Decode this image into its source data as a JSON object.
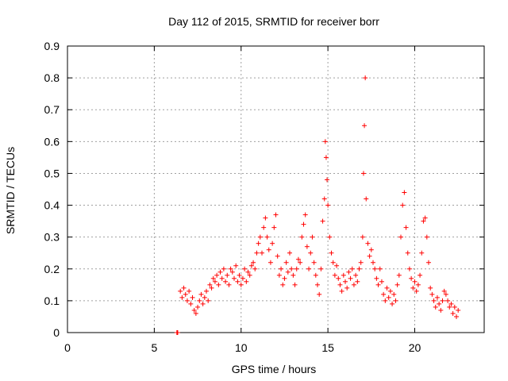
{
  "chart_data": {
    "type": "scatter",
    "title": "Day 112 of 2015, SRMTID for receiver borr",
    "xlabel": "GPS time / hours",
    "ylabel": "SRMTID / TECUs",
    "xlim": [
      0,
      24
    ],
    "ylim": [
      0,
      0.9
    ],
    "xticks": [
      0,
      5,
      10,
      15,
      20
    ],
    "xtick_labels": [
      "0",
      "5",
      "10",
      "15",
      "20"
    ],
    "yticks": [
      0,
      0.1,
      0.2,
      0.3,
      0.4,
      0.5,
      0.6,
      0.7,
      0.8,
      0.9
    ],
    "ytick_labels": [
      "0",
      "0.1",
      "0.2",
      "0.3",
      "0.4",
      "0.5",
      "0.6",
      "0.7",
      "0.8",
      "0.9"
    ],
    "grid": true,
    "marker": "+",
    "color": "#ff0000",
    "series": [
      {
        "name": "SRMTID",
        "x": [
          6.3,
          6.32,
          6.35,
          6.5,
          6.6,
          6.7,
          6.8,
          6.9,
          7.0,
          7.1,
          7.2,
          7.3,
          7.4,
          7.5,
          7.6,
          7.7,
          7.8,
          7.9,
          8.0,
          8.1,
          8.2,
          8.3,
          8.4,
          8.5,
          8.6,
          8.7,
          8.8,
          8.9,
          9.0,
          9.1,
          9.2,
          9.3,
          9.4,
          9.5,
          9.6,
          9.7,
          9.8,
          9.9,
          10.0,
          10.1,
          10.2,
          10.3,
          10.4,
          10.5,
          10.6,
          10.7,
          10.8,
          10.9,
          11.0,
          11.1,
          11.2,
          11.3,
          11.4,
          11.5,
          11.6,
          11.7,
          11.8,
          11.9,
          12.0,
          12.1,
          12.2,
          12.3,
          12.4,
          12.5,
          12.6,
          12.7,
          12.8,
          12.9,
          13.0,
          13.1,
          13.2,
          13.3,
          13.4,
          13.5,
          13.6,
          13.7,
          13.8,
          13.9,
          14.0,
          14.1,
          14.2,
          14.3,
          14.4,
          14.5,
          14.6,
          14.7,
          14.8,
          14.85,
          14.9,
          14.95,
          15.0,
          15.1,
          15.2,
          15.3,
          15.4,
          15.5,
          15.6,
          15.7,
          15.8,
          15.9,
          16.0,
          16.1,
          16.2,
          16.3,
          16.4,
          16.5,
          16.6,
          16.7,
          16.8,
          16.9,
          17.0,
          17.05,
          17.1,
          17.15,
          17.2,
          17.3,
          17.4,
          17.5,
          17.6,
          17.7,
          17.8,
          17.9,
          18.0,
          18.1,
          18.2,
          18.3,
          18.4,
          18.5,
          18.6,
          18.7,
          18.8,
          18.9,
          19.0,
          19.1,
          19.2,
          19.3,
          19.4,
          19.5,
          19.6,
          19.7,
          19.8,
          19.9,
          20.0,
          20.1,
          20.2,
          20.3,
          20.4,
          20.5,
          20.6,
          20.7,
          20.8,
          20.9,
          21.0,
          21.1,
          21.2,
          21.3,
          21.4,
          21.5,
          21.6,
          21.7,
          21.8,
          21.9,
          22.0,
          22.1,
          22.2,
          22.3,
          22.4,
          22.5
        ],
        "y": [
          0.0,
          0.0,
          0.0,
          0.13,
          0.11,
          0.14,
          0.12,
          0.1,
          0.13,
          0.09,
          0.11,
          0.07,
          0.06,
          0.08,
          0.1,
          0.12,
          0.09,
          0.11,
          0.13,
          0.1,
          0.15,
          0.14,
          0.17,
          0.16,
          0.18,
          0.15,
          0.19,
          0.17,
          0.2,
          0.16,
          0.18,
          0.15,
          0.2,
          0.19,
          0.17,
          0.21,
          0.16,
          0.18,
          0.15,
          0.17,
          0.2,
          0.16,
          0.19,
          0.18,
          0.21,
          0.22,
          0.2,
          0.25,
          0.28,
          0.3,
          0.25,
          0.33,
          0.36,
          0.3,
          0.26,
          0.22,
          0.28,
          0.33,
          0.37,
          0.24,
          0.18,
          0.2,
          0.15,
          0.17,
          0.22,
          0.19,
          0.25,
          0.2,
          0.18,
          0.15,
          0.2,
          0.23,
          0.22,
          0.3,
          0.34,
          0.37,
          0.27,
          0.2,
          0.25,
          0.3,
          0.22,
          0.18,
          0.15,
          0.12,
          0.2,
          0.35,
          0.42,
          0.6,
          0.55,
          0.48,
          0.4,
          0.3,
          0.25,
          0.22,
          0.18,
          0.21,
          0.17,
          0.15,
          0.13,
          0.18,
          0.16,
          0.14,
          0.19,
          0.17,
          0.2,
          0.15,
          0.18,
          0.16,
          0.2,
          0.22,
          0.3,
          0.5,
          0.65,
          0.8,
          0.42,
          0.28,
          0.24,
          0.26,
          0.22,
          0.2,
          0.17,
          0.15,
          0.2,
          0.16,
          0.12,
          0.1,
          0.14,
          0.11,
          0.13,
          0.09,
          0.12,
          0.1,
          0.15,
          0.18,
          0.3,
          0.4,
          0.44,
          0.33,
          0.25,
          0.2,
          0.17,
          0.14,
          0.16,
          0.13,
          0.15,
          0.18,
          0.25,
          0.35,
          0.36,
          0.3,
          0.22,
          0.14,
          0.12,
          0.1,
          0.08,
          0.11,
          0.09,
          0.07,
          0.1,
          0.13,
          0.12,
          0.1,
          0.08,
          0.09,
          0.06,
          0.08,
          0.05,
          0.07
        ]
      }
    ]
  }
}
